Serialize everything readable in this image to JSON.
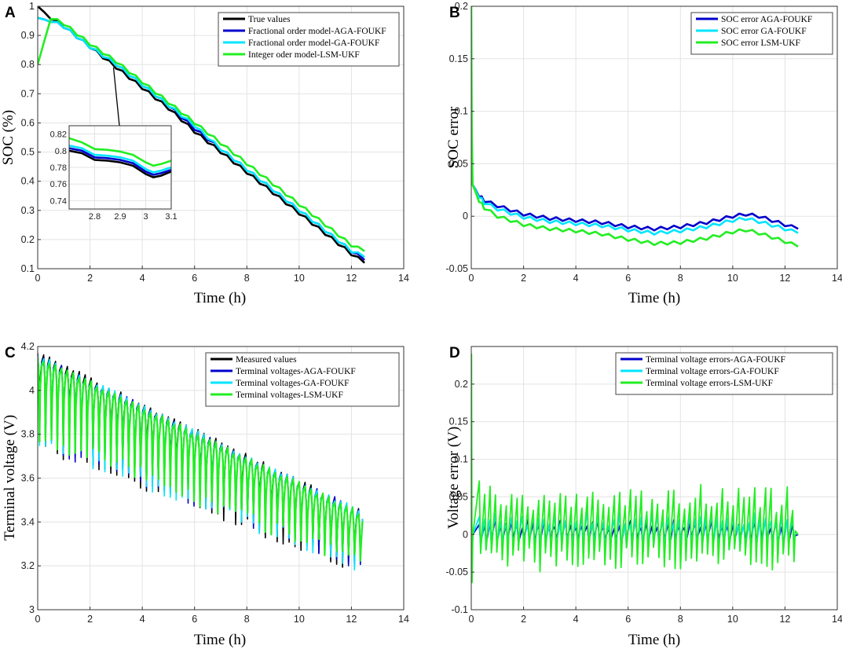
{
  "chart_data": [
    {
      "id": "A",
      "panel_label": "A",
      "type": "line",
      "xlabel": "Time (h)",
      "ylabel": "SOC (%)",
      "xlim": [
        0,
        14
      ],
      "ylim": [
        0.1,
        1
      ],
      "xticks": [
        0,
        2,
        4,
        6,
        8,
        10,
        12,
        14
      ],
      "yticks": [
        0.1,
        0.2,
        0.3,
        0.4,
        0.5,
        0.6,
        0.7,
        0.8,
        0.9,
        1
      ],
      "ytick_labels": [
        "0.1",
        "0.2",
        "0.3",
        "0.4",
        "0.5",
        "0.6",
        "0.7",
        "0.8",
        "0.9",
        "1"
      ],
      "grid": true,
      "legend_position": "top-right",
      "series": [
        {
          "name": "True values",
          "color": "#000000",
          "x": [
            0,
            0.5,
            1,
            2,
            3,
            4,
            5,
            6,
            7,
            8,
            9,
            10,
            11,
            12,
            12.5
          ],
          "y": [
            1.0,
            0.96,
            0.93,
            0.86,
            0.79,
            0.72,
            0.65,
            0.57,
            0.5,
            0.43,
            0.36,
            0.29,
            0.22,
            0.15,
            0.12
          ]
        },
        {
          "name": "Fractional order model-AGA-FOUKF",
          "color": "#0000cc",
          "x": [
            0,
            0.5,
            1,
            2,
            3,
            4,
            5,
            6,
            7,
            8,
            9,
            10,
            11,
            12,
            12.5
          ],
          "y": [
            0.96,
            0.95,
            0.93,
            0.86,
            0.8,
            0.73,
            0.66,
            0.58,
            0.51,
            0.44,
            0.37,
            0.3,
            0.23,
            0.16,
            0.13
          ]
        },
        {
          "name": "Fractional order model-GA-FOUKF",
          "color": "#00e5ff",
          "x": [
            0,
            0.5,
            1,
            2,
            3,
            4,
            5,
            6,
            7,
            8,
            9,
            10,
            11,
            12,
            12.5
          ],
          "y": [
            0.96,
            0.95,
            0.93,
            0.86,
            0.8,
            0.73,
            0.66,
            0.59,
            0.51,
            0.44,
            0.37,
            0.3,
            0.23,
            0.16,
            0.14
          ]
        },
        {
          "name": "Integer oder model-LSM-UKF",
          "color": "#22ee22",
          "x": [
            0,
            0.5,
            1,
            2,
            3,
            4,
            5,
            6,
            7,
            8,
            9,
            10,
            11,
            12,
            12.5
          ],
          "y": [
            0.8,
            0.96,
            0.94,
            0.87,
            0.81,
            0.74,
            0.67,
            0.6,
            0.53,
            0.46,
            0.39,
            0.32,
            0.25,
            0.18,
            0.16
          ]
        }
      ],
      "inset": {
        "xlim": [
          2.7,
          3.1
        ],
        "ylim": [
          0.73,
          0.83
        ],
        "xticks": [
          2.8,
          2.9,
          3,
          3.1
        ],
        "yticks": [
          0.74,
          0.76,
          0.78,
          0.8,
          0.82
        ],
        "xtick_labels": [
          "2.8",
          "2.9",
          "3",
          "3.1"
        ],
        "ytick_labels": [
          "0.74",
          "0.76",
          "0.78",
          "0.8",
          "0.82"
        ],
        "pointer_from": [
          2.9,
          0.79
        ],
        "series": [
          {
            "color": "#000000",
            "x": [
              2.7,
              2.75,
              2.8,
              2.85,
              2.9,
              2.95,
              3.0,
              3.03,
              3.06,
              3.1
            ],
            "y": [
              0.8,
              0.797,
              0.789,
              0.788,
              0.786,
              0.782,
              0.772,
              0.768,
              0.77,
              0.775
            ]
          },
          {
            "color": "#0000cc",
            "x": [
              2.7,
              2.75,
              2.8,
              2.85,
              2.9,
              2.95,
              3.0,
              3.03,
              3.06,
              3.1
            ],
            "y": [
              0.803,
              0.8,
              0.792,
              0.791,
              0.789,
              0.785,
              0.775,
              0.771,
              0.773,
              0.777
            ]
          },
          {
            "color": "#00e5ff",
            "x": [
              2.7,
              2.75,
              2.8,
              2.85,
              2.9,
              2.95,
              3.0,
              3.03,
              3.06,
              3.1
            ],
            "y": [
              0.806,
              0.803,
              0.795,
              0.794,
              0.792,
              0.788,
              0.778,
              0.774,
              0.776,
              0.78
            ]
          },
          {
            "color": "#22ee22",
            "x": [
              2.7,
              2.75,
              2.8,
              2.85,
              2.9,
              2.95,
              3.0,
              3.03,
              3.06,
              3.1
            ],
            "y": [
              0.815,
              0.81,
              0.802,
              0.801,
              0.799,
              0.795,
              0.786,
              0.782,
              0.784,
              0.788
            ]
          }
        ]
      }
    },
    {
      "id": "B",
      "panel_label": "B",
      "type": "line",
      "xlabel": "Time (h)",
      "ylabel": "SOC error",
      "xlim": [
        0,
        14
      ],
      "ylim": [
        -0.05,
        0.2
      ],
      "xticks": [
        0,
        2,
        4,
        6,
        8,
        10,
        12,
        14
      ],
      "yticks": [
        -0.05,
        0,
        0.05,
        0.1,
        0.15,
        0.2
      ],
      "ytick_labels": [
        "-0.05",
        "0",
        "0.05",
        "0.1",
        "0.15",
        "0.2"
      ],
      "grid": true,
      "legend_position": "top-right",
      "series": [
        {
          "name": "SOC error AGA-FOUKF",
          "color": "#0000cc",
          "x": [
            0,
            0.05,
            0.3,
            0.5,
            1,
            2,
            3,
            4,
            5,
            6,
            7,
            8,
            9,
            10,
            10.5,
            11,
            12,
            12.5
          ],
          "y": [
            0.04,
            0.03,
            0.02,
            0.015,
            0.01,
            0.002,
            -0.002,
            -0.004,
            -0.006,
            -0.01,
            -0.012,
            -0.01,
            -0.006,
            0,
            0.002,
            0,
            -0.008,
            -0.012
          ]
        },
        {
          "name": "SOC error GA-FOUKF",
          "color": "#00e5ff",
          "x": [
            0,
            0.05,
            0.3,
            0.5,
            1,
            2,
            3,
            4,
            5,
            6,
            7,
            8,
            9,
            10,
            10.5,
            11,
            12,
            12.5
          ],
          "y": [
            0.04,
            0.03,
            0.019,
            0.013,
            0.007,
            -0.001,
            -0.005,
            -0.007,
            -0.009,
            -0.013,
            -0.016,
            -0.014,
            -0.01,
            -0.004,
            -0.002,
            -0.005,
            -0.012,
            -0.016
          ]
        },
        {
          "name": "SOC error LSM-UKF",
          "color": "#22ee22",
          "x": [
            0,
            0.02,
            0.05,
            0.3,
            0.5,
            1,
            2,
            3,
            4,
            5,
            6,
            7,
            8,
            9,
            10,
            10.5,
            11,
            12,
            12.5
          ],
          "y": [
            0.2,
            0.08,
            0.03,
            0.015,
            0.008,
            0.0,
            -0.008,
            -0.012,
            -0.014,
            -0.017,
            -0.022,
            -0.026,
            -0.025,
            -0.021,
            -0.015,
            -0.013,
            -0.016,
            -0.024,
            -0.029
          ]
        }
      ]
    },
    {
      "id": "C",
      "panel_label": "C",
      "type": "line",
      "xlabel": "Time (h)",
      "ylabel": "Terminal voltage (V)",
      "xlim": [
        0,
        14
      ],
      "ylim": [
        3,
        4.2
      ],
      "xticks": [
        0,
        2,
        4,
        6,
        8,
        10,
        12,
        14
      ],
      "yticks": [
        3,
        3.2,
        3.4,
        3.6,
        3.8,
        4,
        4.2
      ],
      "ytick_labels": [
        "3",
        "3.2",
        "3.4",
        "3.6",
        "3.8",
        "4",
        "4.2"
      ],
      "grid": true,
      "legend_position": "top-right",
      "series": [
        {
          "name": "Measured values",
          "color": "#000000",
          "upper": [
            [
              0,
              4.18
            ],
            [
              12.5,
              3.45
            ]
          ],
          "lower": [
            [
              0,
              3.72
            ],
            [
              12.5,
              3.15
            ]
          ]
        },
        {
          "name": "Terminal voltages-AGA-FOUKF",
          "color": "#0000cc",
          "upper": [
            [
              0,
              4.17
            ],
            [
              12.5,
              3.45
            ]
          ],
          "lower": [
            [
              0,
              3.73
            ],
            [
              12.5,
              3.16
            ]
          ]
        },
        {
          "name": "Terminal voltages-GA-FOUKF",
          "color": "#00e5ff",
          "upper": [
            [
              0,
              4.17
            ],
            [
              12.5,
              3.45
            ]
          ],
          "lower": [
            [
              0,
              3.73
            ],
            [
              12.5,
              3.16
            ]
          ]
        },
        {
          "name": "Terminal voltages-LSM-UKF",
          "color": "#22ee22",
          "upper": [
            [
              0,
              4.16
            ],
            [
              12.5,
              3.44
            ]
          ],
          "lower": [
            [
              0,
              3.76
            ],
            [
              12.5,
              3.17
            ]
          ]
        }
      ]
    },
    {
      "id": "D",
      "panel_label": "D",
      "type": "line",
      "xlabel": "Time (h)",
      "ylabel": "Voltage error (V)",
      "xlim": [
        0,
        14
      ],
      "ylim": [
        -0.1,
        0.25
      ],
      "xticks": [
        0,
        2,
        4,
        6,
        8,
        10,
        12,
        14
      ],
      "yticks": [
        -0.1,
        -0.05,
        0,
        0.05,
        0.1,
        0.15,
        0.2
      ],
      "ytick_labels": [
        "-0.1",
        "-0.05",
        "0",
        "0.05",
        "0.1",
        "0.15",
        "0.2"
      ],
      "grid": true,
      "legend_position": "top-right",
      "series": [
        {
          "name": "Terminal voltage errors-AGA-FOUKF",
          "color": "#0000cc",
          "amplitude_range": [
            -0.03,
            0.04
          ]
        },
        {
          "name": "Terminal voltage errors-GA-FOUKF",
          "color": "#00e5ff",
          "amplitude_range": [
            -0.035,
            0.055
          ]
        },
        {
          "name": "Terminal voltage errors-LSM-UKF",
          "color": "#22ee22",
          "amplitude_range": [
            -0.08,
            0.24
          ]
        }
      ]
    }
  ]
}
